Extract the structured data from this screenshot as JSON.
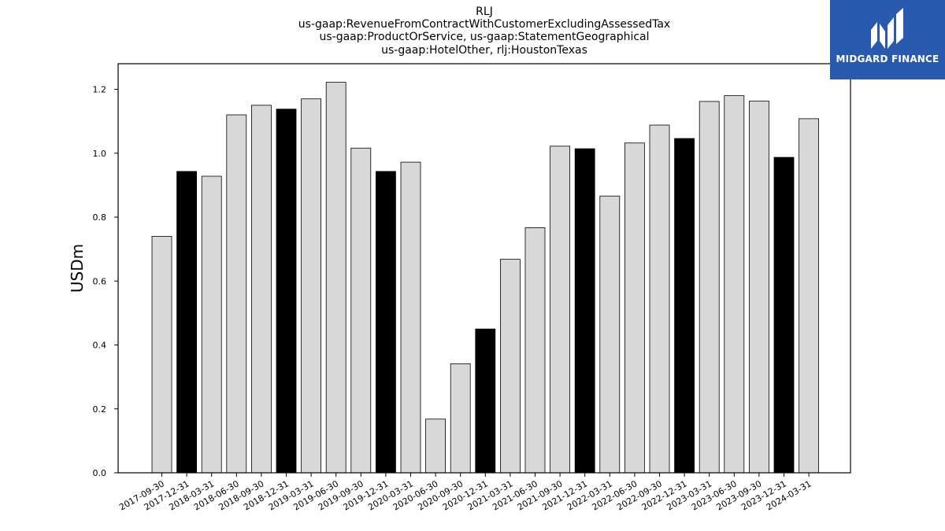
{
  "title_lines": [
    "RLJ",
    "us-gaap:RevenueFromContractWithCustomerExcludingAssessedTax",
    "us-gaap:ProductOrService, us-gaap:StatementGeographical",
    "us-gaap:HotelOther, rlj:HoustonTexas"
  ],
  "logo": {
    "text": "MIDGARD FINANCE",
    "background": "#2a5aad"
  },
  "chart_data": {
    "type": "bar",
    "ylabel": "USDm",
    "ylim": [
      0,
      1.28
    ],
    "yticks": [
      "0.0",
      "0.2",
      "0.4",
      "0.6",
      "0.8",
      "1.0",
      "1.2"
    ],
    "grid": false,
    "legend": "none",
    "colors": {
      "quarter_bar": "#d8d8d8",
      "year_end_bar": "#000000",
      "edge": "#000000"
    },
    "categories": [
      "2017-09-30",
      "2017-12-31",
      "2018-03-31",
      "2018-06-30",
      "2018-09-30",
      "2018-12-31",
      "2019-03-31",
      "2019-06-30",
      "2019-09-30",
      "2019-12-31",
      "2020-03-31",
      "2020-06-30",
      "2020-09-30",
      "2020-12-31",
      "2021-03-31",
      "2021-06-30",
      "2021-09-30",
      "2021-12-31",
      "2022-03-31",
      "2022-06-30",
      "2022-09-30",
      "2022-12-31",
      "2023-03-31",
      "2023-06-30",
      "2023-09-30",
      "2023-12-31",
      "2024-03-31"
    ],
    "values": [
      0.74,
      0.943,
      0.928,
      1.12,
      1.15,
      1.138,
      1.17,
      1.222,
      1.016,
      0.943,
      0.972,
      0.168,
      0.341,
      0.45,
      0.668,
      0.767,
      1.022,
      1.014,
      0.866,
      1.032,
      1.088,
      1.046,
      1.162,
      1.18,
      1.163,
      0.987,
      1.108
    ]
  }
}
